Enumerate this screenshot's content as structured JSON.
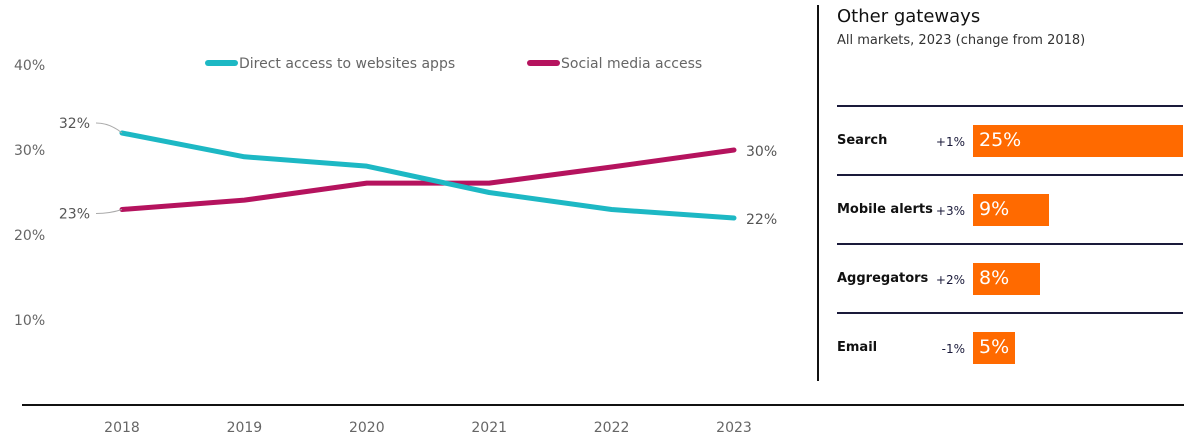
{
  "chart_data": [
    {
      "type": "line",
      "categories": [
        "2018",
        "2019",
        "2020",
        "2021",
        "2022",
        "2023"
      ],
      "series": [
        {
          "name": "Direct access to websites apps",
          "color": "#1db8c4",
          "values": [
            32,
            29.2,
            28.1,
            25,
            23,
            22
          ]
        },
        {
          "name": "Social media access",
          "color": "#b5135e",
          "values": [
            23,
            24.1,
            26.1,
            26.1,
            28,
            30
          ]
        }
      ],
      "yticks": [
        "10%",
        "20%",
        "30%",
        "40%"
      ],
      "ylim": [
        0,
        40
      ],
      "data_labels": {
        "start": [
          "32%",
          "23%"
        ],
        "end": [
          "22%",
          "30%"
        ]
      },
      "legend": "top"
    },
    {
      "type": "bar",
      "title": "Other gateways",
      "subtitle": "All markets, 2023 (change from 2018)",
      "categories": [
        "Search",
        "Mobile alerts",
        "Aggregators",
        "Email"
      ],
      "values": [
        25,
        9,
        8,
        5
      ],
      "value_labels": [
        "25%",
        "9%",
        "8%",
        "5%"
      ],
      "changes": [
        "+1%",
        "+3%",
        "+2%",
        "-1%"
      ],
      "color": "#ff6a00"
    }
  ]
}
